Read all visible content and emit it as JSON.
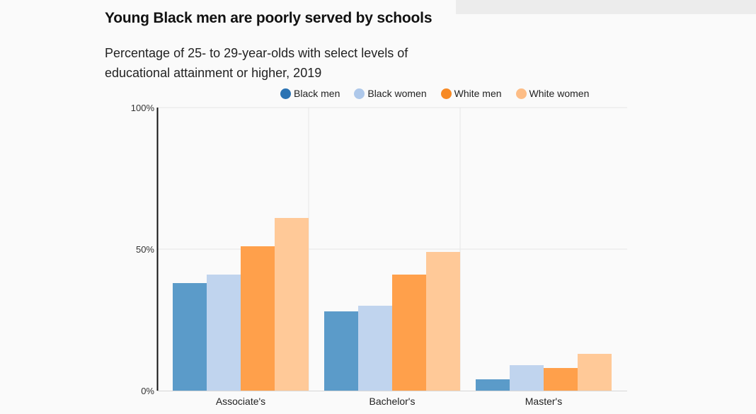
{
  "title": "Young Black men are poorly served by schools",
  "subtitle": "Percentage of 25- to 29-year-olds with select levels of educational attainment or higher, 2019",
  "chart_data": {
    "type": "bar",
    "title": "Young Black men are poorly served by schools",
    "subtitle": "Percentage of 25- to 29-year-olds with select levels of educational attainment or higher, 2019",
    "categories": [
      "Associate's",
      "Bachelor's",
      "Master's"
    ],
    "series": [
      {
        "name": "Black men",
        "color": "#5b9bc9",
        "legend_color": "#2b73b3",
        "values": [
          38,
          28,
          4
        ]
      },
      {
        "name": "Black women",
        "color": "#c0d4ee",
        "legend_color": "#aec8ea",
        "values": [
          41,
          30,
          9
        ]
      },
      {
        "name": "White men",
        "color": "#ffa04b",
        "legend_color": "#f78a25",
        "values": [
          51,
          41,
          8
        ]
      },
      {
        "name": "White women",
        "color": "#ffc998",
        "legend_color": "#fdbd86",
        "values": [
          61,
          49,
          13
        ]
      }
    ],
    "ylim": [
      0,
      100
    ],
    "yticks": [
      {
        "value": 0,
        "label": "0%"
      },
      {
        "value": 50,
        "label": "50%"
      },
      {
        "value": 100,
        "label": "100%"
      }
    ],
    "xlabel": "",
    "ylabel": "",
    "grid": true,
    "legend_position": "top-right"
  }
}
